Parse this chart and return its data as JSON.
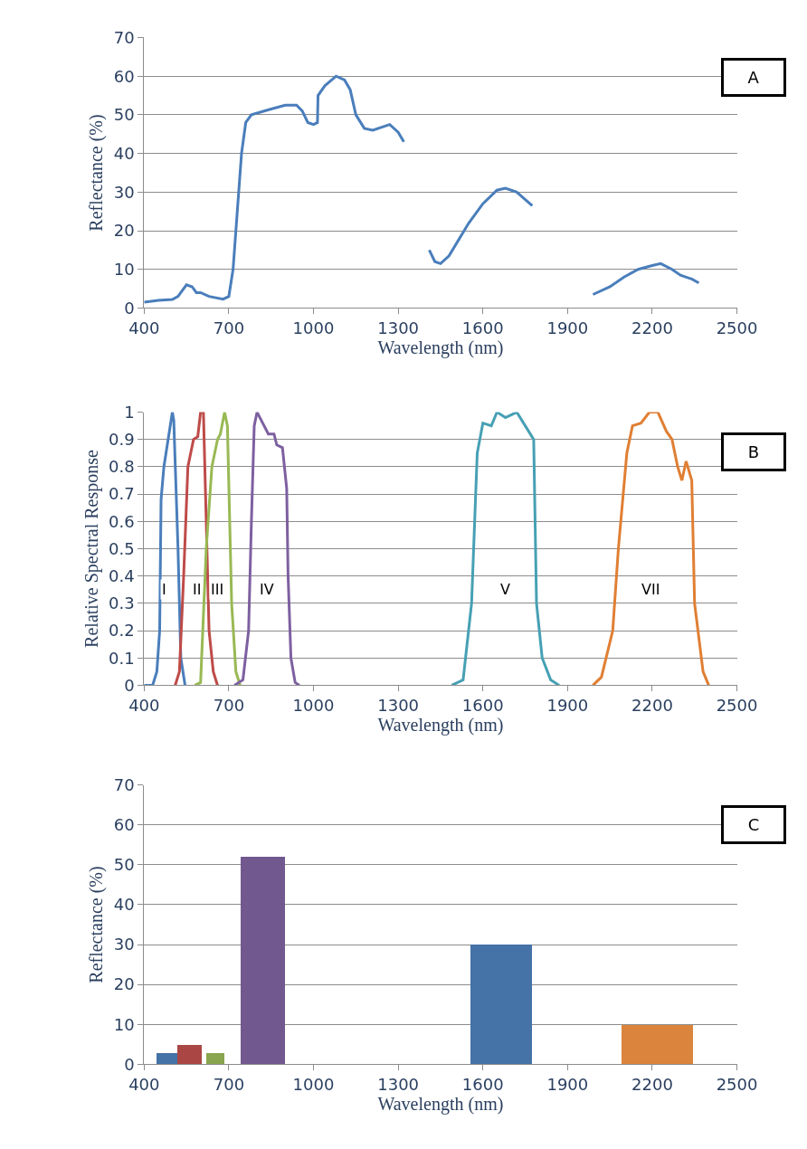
{
  "chart_data": [
    {
      "type": "line",
      "xlabel": "Wavelength (nm)",
      "ylabel": "Reflectance (%)",
      "xlim": [
        400,
        2500
      ],
      "xticks": [
        400,
        700,
        1000,
        1300,
        1600,
        1900,
        2200,
        2500
      ],
      "ylim": [
        0,
        70
      ],
      "yticks": [
        0,
        10,
        20,
        30,
        40,
        50,
        60,
        70
      ],
      "grid": "y",
      "annotations": [
        "A"
      ],
      "series": [
        {
          "color": "#4a7ebb",
          "x": [
            400,
            450,
            500,
            520,
            550,
            570,
            585,
            600,
            630,
            680,
            700,
            715,
            730,
            745,
            760,
            780,
            850,
            900,
            940,
            960,
            980,
            1000,
            1014,
            1016,
            1040,
            1080,
            1110,
            1130,
            1150,
            1180,
            1210,
            1270,
            1300,
            1320,
            1365,
            1410,
            1430,
            1450,
            1480,
            1550,
            1600,
            1650,
            1680,
            1720,
            1775,
            1880,
            1990,
            2050,
            2100,
            2150,
            2200,
            2230,
            2270,
            2300,
            2340,
            2365
          ],
          "values": [
            1.5,
            2,
            2.2,
            3,
            6,
            5.5,
            4,
            4,
            3,
            2.3,
            3,
            10,
            25,
            40,
            48,
            50,
            51.5,
            52.5,
            52.5,
            51,
            48,
            47.5,
            48,
            55,
            57.5,
            60,
            59,
            56.5,
            50,
            46.5,
            46,
            47.5,
            45.5,
            43,
            null,
            15,
            12,
            11.5,
            13.5,
            22,
            27,
            30.5,
            31,
            30,
            26.5,
            null,
            3.5,
            5.5,
            8,
            10,
            11,
            11.5,
            10,
            8.5,
            7.5,
            6.5
          ]
        }
      ]
    },
    {
      "type": "line",
      "xlabel": "Wavelength (nm)",
      "ylabel": "Relative Spectral Response",
      "xlim": [
        400,
        2500
      ],
      "xticks": [
        400,
        700,
        1000,
        1300,
        1600,
        1900,
        2200,
        2500
      ],
      "ylim": [
        0,
        1
      ],
      "yticks": [
        0,
        0.1,
        0.2,
        0.3,
        0.4,
        0.5,
        0.6,
        0.7,
        0.8,
        0.9,
        1
      ],
      "grid": "y",
      "annotations": [
        "B"
      ],
      "series": [
        {
          "name": "I",
          "color": "#4a7ebb",
          "x": [
            400,
            430,
            445,
            455,
            460,
            470,
            485,
            500,
            505,
            520,
            530,
            545
          ],
          "values": [
            0,
            0,
            0.05,
            0.2,
            0.68,
            0.8,
            0.9,
            1.0,
            0.97,
            0.5,
            0.1,
            0
          ]
        },
        {
          "name": "II",
          "color": "#be4b48",
          "x": [
            510,
            525,
            540,
            555,
            575,
            590,
            600,
            610,
            620,
            630,
            645,
            660
          ],
          "values": [
            0,
            0.05,
            0.4,
            0.8,
            0.9,
            0.91,
            1.0,
            1.0,
            0.6,
            0.2,
            0.05,
            0
          ]
        },
        {
          "name": "III",
          "color": "#98b954",
          "x": [
            580,
            600,
            620,
            640,
            660,
            670,
            685,
            695,
            710,
            725,
            740
          ],
          "values": [
            0,
            0.01,
            0.5,
            0.8,
            0.9,
            0.92,
            1.0,
            0.95,
            0.3,
            0.05,
            0
          ]
        },
        {
          "name": "IV",
          "color": "#7d60a0",
          "x": [
            720,
            750,
            770,
            780,
            790,
            800,
            815,
            840,
            860,
            870,
            890,
            905,
            910,
            920,
            935,
            950
          ],
          "values": [
            0,
            0.02,
            0.2,
            0.6,
            0.95,
            1.0,
            0.97,
            0.92,
            0.92,
            0.88,
            0.87,
            0.72,
            0.4,
            0.1,
            0.01,
            0
          ]
        },
        {
          "name": "V",
          "color": "#46a0b4",
          "x": [
            1490,
            1530,
            1560,
            1580,
            1600,
            1630,
            1650,
            1680,
            1700,
            1720,
            1750,
            1780,
            1790,
            1810,
            1840,
            1870
          ],
          "values": [
            0,
            0.02,
            0.3,
            0.85,
            0.96,
            0.95,
            1.0,
            0.98,
            0.99,
            1.0,
            0.95,
            0.9,
            0.3,
            0.1,
            0.02,
            0
          ]
        },
        {
          "name": "VII",
          "color": "#e07f33",
          "x": [
            1990,
            2020,
            2060,
            2080,
            2110,
            2130,
            2160,
            2190,
            2220,
            2250,
            2270,
            2290,
            2305,
            2320,
            2340,
            2350,
            2380,
            2400
          ],
          "values": [
            0,
            0.03,
            0.2,
            0.5,
            0.85,
            0.95,
            0.96,
            1.0,
            1.0,
            0.93,
            0.9,
            0.8,
            0.75,
            0.82,
            0.75,
            0.3,
            0.05,
            0
          ]
        }
      ]
    },
    {
      "type": "histogram",
      "xlabel": "Wavelength (nm)",
      "ylabel": "Reflectance (%)",
      "xlim": [
        400,
        2500
      ],
      "xticks": [
        400,
        700,
        1000,
        1300,
        1600,
        1900,
        2200,
        2500
      ],
      "ylim": [
        0,
        70
      ],
      "yticks": [
        0,
        10,
        20,
        30,
        40,
        50,
        60,
        70
      ],
      "grid": "y",
      "annotations": [
        "C"
      ],
      "bins": [
        446,
        519,
        605,
        620,
        685,
        743,
        899,
        1557,
        1774,
        2093,
        2344
      ],
      "values": [
        3,
        5,
        null,
        3,
        null,
        52,
        null,
        30,
        null,
        10
      ],
      "colors": [
        "#4572a7",
        "#aa4643",
        null,
        "#89a54e",
        null,
        "#71588f",
        null,
        "#4572a7",
        null,
        "#db843d"
      ]
    }
  ]
}
